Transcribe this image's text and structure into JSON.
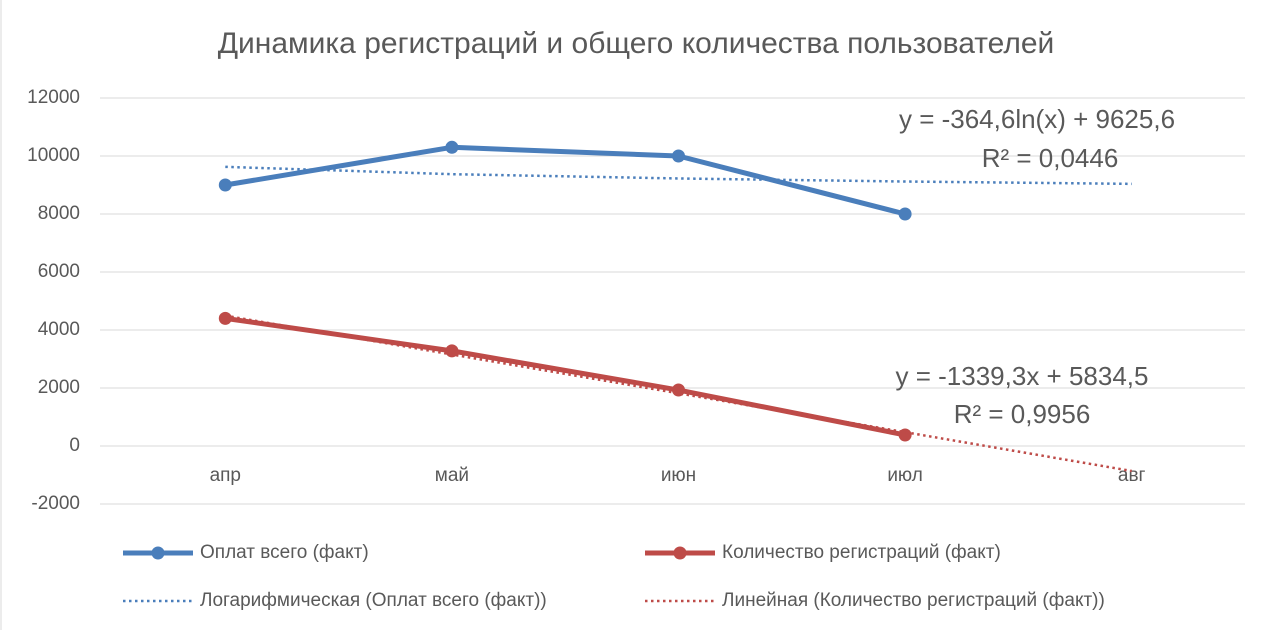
{
  "chart_data": {
    "type": "line",
    "title": "Динамика регистраций и общего количества пользователей",
    "categories": [
      "апр",
      "май",
      "июн",
      "июл",
      "авг"
    ],
    "series": [
      {
        "name": "Оплат всего (факт)",
        "color": "#4a7ebb",
        "style": "solid",
        "values": [
          9000,
          10300,
          10000,
          8000,
          null
        ]
      },
      {
        "name": "Количество регистраций (факт)",
        "color": "#be4b48",
        "style": "solid",
        "values": [
          4400,
          3280,
          1930,
          380,
          null
        ]
      },
      {
        "name": "Логарифмическая (Оплат всего (факт))",
        "color": "#4a7ebb",
        "style": "dotted",
        "values": [
          9626,
          9373,
          9225,
          9120,
          9039
        ]
      },
      {
        "name": "Линейная (Количество регистраций (факт))",
        "color": "#be4b48",
        "style": "dotted",
        "values": [
          4495,
          3156,
          1817,
          477,
          -862
        ]
      }
    ],
    "annotations": [
      "y = -364,6ln(x) + 9625,6",
      "R² = 0,0446",
      "y = -1339,3x + 5834,5",
      "R² = 0,9956"
    ],
    "ylim": [
      -2000,
      12000
    ],
    "yticks": [
      -2000,
      0,
      2000,
      4000,
      6000,
      8000,
      10000,
      12000
    ],
    "grid": true
  }
}
